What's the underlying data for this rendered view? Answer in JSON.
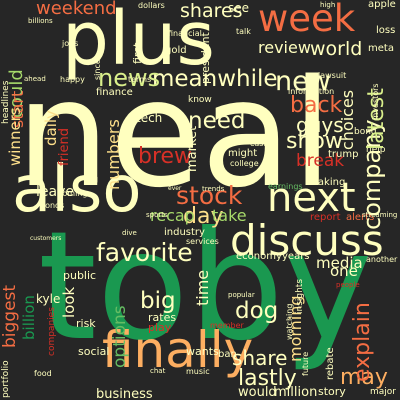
{
  "background": "#262626",
  "palette": {
    "pale_yellow": "#fee08b",
    "yellow": "#fdae61",
    "orange": "#f46d43",
    "red": "#d73027",
    "light_green": "#d9ef8b",
    "green": "#a6d96a",
    "mid_green": "#66bd63",
    "dark_green": "#1a9850",
    "cream": "#ffffbf"
  },
  "words": [
    {
      "text": "neal",
      "color": "#ffffbf"
    },
    {
      "text": "toby",
      "color": "#1a9850"
    },
    {
      "text": "plus",
      "color": "#ffffbf"
    },
    {
      "text": "also",
      "color": "#ffffbf"
    },
    {
      "text": "finally",
      "color": "#fdae61"
    },
    {
      "text": "discuss",
      "color": "#ffffbf"
    },
    {
      "text": "next",
      "color": "#ffffbf"
    },
    {
      "text": "week",
      "color": "#f46d43"
    },
    {
      "text": "stock",
      "color": "#f46d43"
    },
    {
      "text": "favorite",
      "color": "#ffffbf"
    },
    {
      "text": "meanwhile",
      "color": "#ffffbf"
    },
    {
      "text": "news",
      "color": "#d9ef8b"
    },
    {
      "text": "new",
      "color": "#ffffbf"
    },
    {
      "text": "show",
      "color": "#ffffbf"
    },
    {
      "text": "lastly",
      "color": "#ffffbf"
    },
    {
      "text": "explain",
      "color": "#f46d43"
    },
    {
      "text": "company",
      "color": "#ffffbf"
    },
    {
      "text": "latest",
      "color": "#d9ef8b"
    },
    {
      "text": "shares",
      "color": "#ffffbf"
    },
    {
      "text": "weekend",
      "color": "#f46d43"
    },
    {
      "text": "could",
      "color": "#a6d96a"
    },
    {
      "text": "start",
      "color": "#f46d43"
    },
    {
      "text": "back",
      "color": "#f46d43"
    },
    {
      "text": "world",
      "color": "#ffffbf"
    },
    {
      "text": "review",
      "color": "#ffffbf"
    },
    {
      "text": "guys",
      "color": "#ffffbf"
    },
    {
      "text": "biggest",
      "color": "#f46d43"
    },
    {
      "text": "need",
      "color": "#ffffbf"
    },
    {
      "text": "brew",
      "color": "#d73027"
    },
    {
      "text": "day",
      "color": "#fee08b"
    },
    {
      "text": "big",
      "color": "#ffffbf"
    },
    {
      "text": "dog",
      "color": "#ffffbf"
    },
    {
      "text": "share",
      "color": "#ffffbf"
    },
    {
      "text": "may",
      "color": "#fdae61"
    },
    {
      "text": "morning",
      "color": "#fee08b"
    },
    {
      "text": "options",
      "color": "#66bd63"
    },
    {
      "text": "time",
      "color": "#ffffbf"
    },
    {
      "text": "numbers",
      "color": "#fee08b"
    },
    {
      "text": "daily",
      "color": "#fee08b"
    },
    {
      "text": "recap",
      "color": "#a6d96a"
    },
    {
      "text": "take",
      "color": "#a6d96a"
    },
    {
      "text": "break",
      "color": "#d73027"
    },
    {
      "text": "business",
      "color": "#ffffbf"
    },
    {
      "text": "leave",
      "color": "#ffffbf"
    },
    {
      "text": "media",
      "color": "#ffffbf"
    },
    {
      "text": "one",
      "color": "#ffffbf"
    },
    {
      "text": "winners",
      "color": "#fee08b"
    },
    {
      "text": "look",
      "color": "#ffffbf"
    },
    {
      "text": "choices",
      "color": "#ffffbf"
    },
    {
      "text": "friend",
      "color": "#d73027"
    },
    {
      "text": "billion",
      "color": "#1a9850"
    },
    {
      "text": "market",
      "color": "#ffffbf"
    },
    {
      "text": "would",
      "color": "#ffffbf"
    },
    {
      "text": "million",
      "color": "#ffffbf"
    },
    {
      "text": "kyle",
      "color": "#ffffbf"
    },
    {
      "text": "public",
      "color": "#ffffbf"
    },
    {
      "text": "risk",
      "color": "#ffffbf"
    },
    {
      "text": "social",
      "color": "#ffffbf"
    },
    {
      "text": "wants",
      "color": "#ffffbf"
    },
    {
      "text": "rates",
      "color": "#ffffbf"
    },
    {
      "text": "play",
      "color": "#d73027"
    },
    {
      "text": "trump",
      "color": "#ffffbf"
    },
    {
      "text": "apple",
      "color": "#ffffbf"
    },
    {
      "text": "dollars",
      "color": "#ffffbf"
    },
    {
      "text": "first",
      "color": "#ffffbf"
    },
    {
      "text": "gold",
      "color": "#ffffbf"
    },
    {
      "text": "tech",
      "color": "#ffffbf"
    },
    {
      "text": "president",
      "color": "#ffffbf"
    },
    {
      "text": "see",
      "color": "#ffffbf"
    },
    {
      "text": "meta",
      "color": "#ffffbf"
    },
    {
      "text": "headlines",
      "color": "#ffffbf"
    },
    {
      "text": "finance",
      "color": "#ffffbf"
    },
    {
      "text": "economy",
      "color": "#ffffbf"
    },
    {
      "text": "industry",
      "color": "#ffffbf"
    },
    {
      "text": "years",
      "color": "#ffffbf"
    },
    {
      "text": "ban",
      "color": "#ffffbf"
    },
    {
      "text": "another",
      "color": "#ffffbf"
    },
    {
      "text": "rebate",
      "color": "#ffffbf"
    },
    {
      "text": "alerts",
      "color": "#f46d43"
    },
    {
      "text": "report",
      "color": "#d73027"
    },
    {
      "text": "taking",
      "color": "#ffffbf"
    },
    {
      "text": "earnings",
      "color": "#66bd63"
    },
    {
      "text": "insights",
      "color": "#ffffbf"
    },
    {
      "text": "account",
      "color": "#ffffbf"
    },
    {
      "text": "might",
      "color": "#ffffbf"
    },
    {
      "text": "know",
      "color": "#ffffbf"
    },
    {
      "text": "information",
      "color": "#ffffbf"
    },
    {
      "text": "help",
      "color": "#ffffbf"
    },
    {
      "text": "loss",
      "color": "#ffffbf"
    },
    {
      "text": "bond",
      "color": "#ffffbf"
    },
    {
      "text": "investors",
      "color": "#ffffbf"
    },
    {
      "text": "portfolio",
      "color": "#ffffbf"
    },
    {
      "text": "companies",
      "color": "#d73027"
    },
    {
      "text": "future",
      "color": "#ffffbf"
    },
    {
      "text": "global",
      "color": "#ffffbf"
    },
    {
      "text": "major",
      "color": "#ffffbf"
    },
    {
      "text": "story",
      "color": "#ffffbf"
    },
    {
      "text": "watching",
      "color": "#ffffbf"
    },
    {
      "text": "popular",
      "color": "#ffffbf"
    },
    {
      "text": "services",
      "color": "#ffffbf"
    },
    {
      "text": "trends",
      "color": "#ffffbf"
    },
    {
      "text": "bonds",
      "color": "#ffffbf"
    },
    {
      "text": "coming",
      "color": "#ffffbf"
    },
    {
      "text": "ahead",
      "color": "#ffffbf"
    },
    {
      "text": "happy",
      "color": "#ffffbf"
    },
    {
      "text": "jobs",
      "color": "#ffffbf"
    },
    {
      "text": "food",
      "color": "#ffffbf"
    },
    {
      "text": "cash",
      "color": "#ffffbf"
    },
    {
      "text": "college",
      "color": "#ffffbf"
    },
    {
      "text": "high",
      "color": "#ffffbf"
    },
    {
      "text": "talk",
      "color": "#ffffbf"
    },
    {
      "text": "terms",
      "color": "#ffffbf"
    },
    {
      "text": "financial",
      "color": "#ffffbf"
    },
    {
      "text": "since",
      "color": "#ffffbf"
    },
    {
      "text": "sports",
      "color": "#ffffbf"
    },
    {
      "text": "chat",
      "color": "#ffffbf"
    },
    {
      "text": "music",
      "color": "#ffffbf"
    },
    {
      "text": "streaming",
      "color": "#ffffbf"
    },
    {
      "text": "customers",
      "color": "#ffffbf"
    },
    {
      "text": "dive",
      "color": "#ffffbf"
    },
    {
      "text": "lawsuit",
      "color": "#ffffbf"
    },
    {
      "text": "billions",
      "color": "#ffffbf"
    },
    {
      "text": "ever",
      "color": "#ffffbf"
    },
    {
      "text": "people",
      "color": "#d73027"
    },
    {
      "text": "member",
      "color": "#d73027"
    }
  ]
}
